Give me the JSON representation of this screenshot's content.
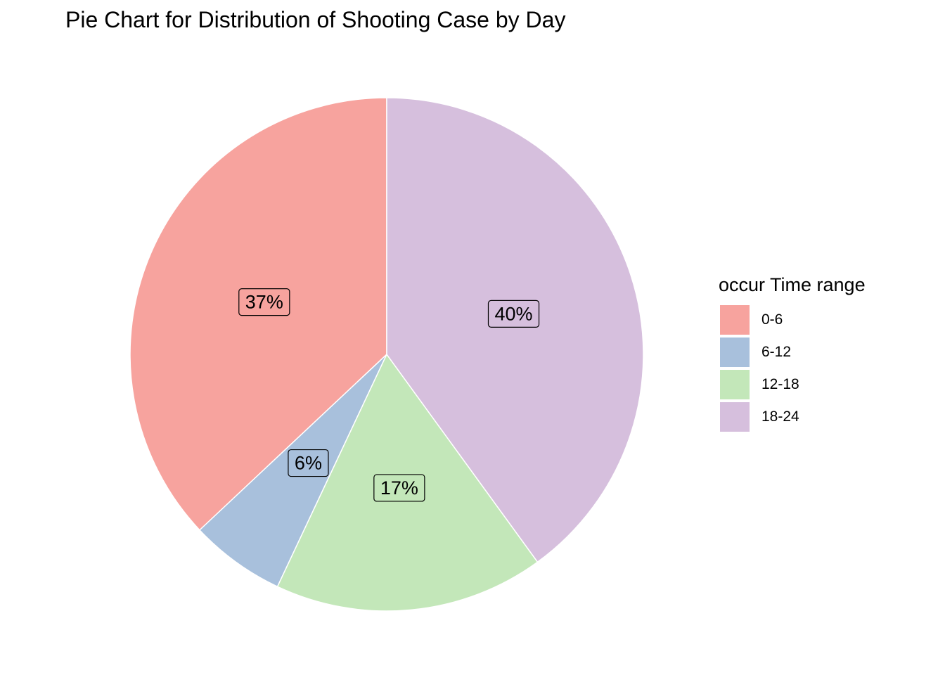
{
  "chart_data": {
    "type": "pie",
    "title": "Pie Chart for Distribution of Shooting Case by Day",
    "legend_title": "occur Time range",
    "legend_position": "right",
    "categories": [
      "0-6",
      "6-12",
      "12-18",
      "18-24"
    ],
    "values": [
      37,
      6,
      17,
      40
    ],
    "labels": [
      "37%",
      "6%",
      "17%",
      "40%"
    ],
    "colors": [
      "#F7A39E",
      "#A8C0DC",
      "#C3E7B9",
      "#D6BFDD"
    ],
    "direction": "counterclockwise",
    "start": "top"
  }
}
